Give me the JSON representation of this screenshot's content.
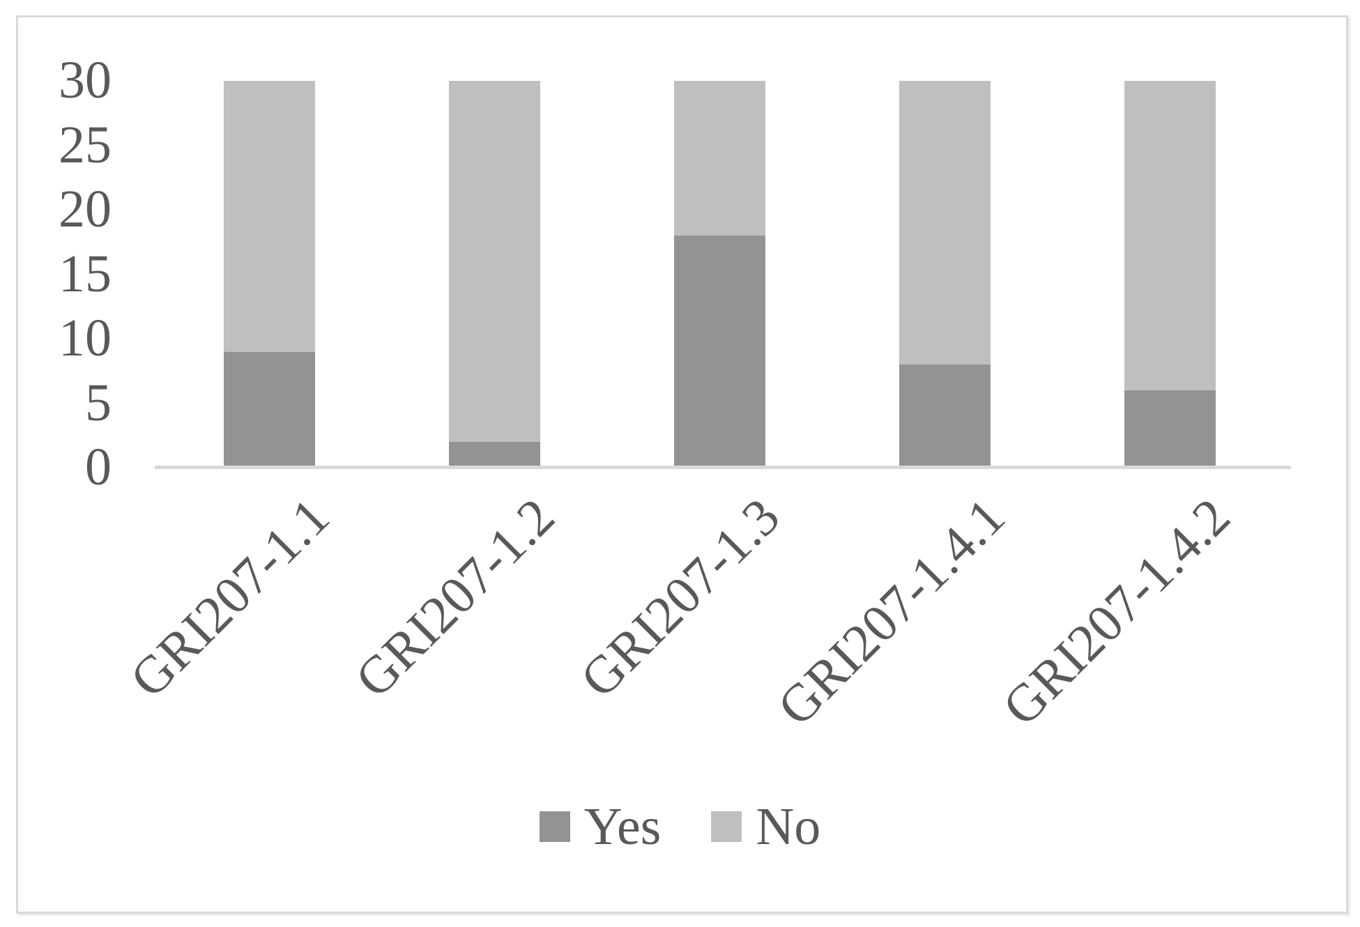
{
  "chart_data": {
    "type": "bar",
    "stacked": true,
    "title": "",
    "xlabel": "",
    "ylabel": "",
    "categories": [
      "GRI207-1.1",
      "GRI207-1.2",
      "GRI207-1.3",
      "GRI207-1.4.1",
      "GRI207-1.4.2"
    ],
    "series": [
      {
        "name": "Yes",
        "color": "#939393",
        "values": [
          9,
          2,
          18,
          8,
          6
        ]
      },
      {
        "name": "No",
        "color": "#bfbfbf",
        "values": [
          21,
          28,
          12,
          22,
          24
        ]
      }
    ],
    "bar_total": 30,
    "ylim": [
      0,
      30
    ],
    "y_ticks": [
      30,
      25,
      20,
      15,
      10,
      5,
      0
    ],
    "grid": false,
    "legend_position": "bottom-center",
    "category_label_rotation_deg": -45
  },
  "colors": {
    "yes_fill": "#939393",
    "no_fill": "#bfbfbf",
    "axis_line": "#d9d9d9",
    "frame_border": "#d9d9d9",
    "text": "#595959",
    "background": "#ffffff"
  }
}
